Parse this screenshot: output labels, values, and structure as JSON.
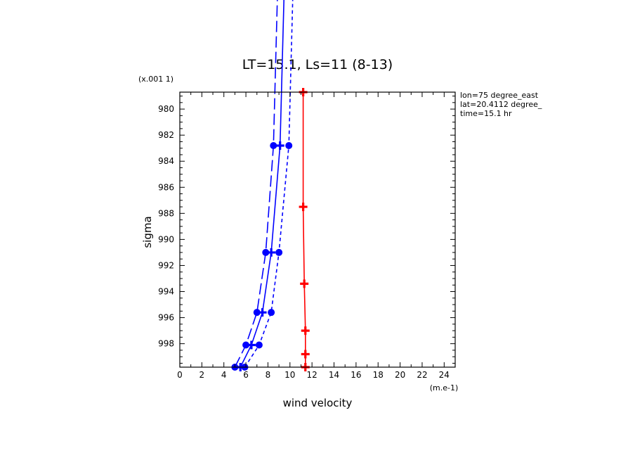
{
  "chart_data": {
    "type": "line",
    "title": "LT=15.1, Ls=11 (8-13)",
    "xlabel": "wind velocity",
    "ylabel": "sigma",
    "x_unit": "(m.e-1)",
    "y_unit": "(x.001 1)",
    "xlim": [
      0,
      25
    ],
    "ylim": [
      999.8,
      978.7
    ],
    "x_ticks": [
      0,
      2,
      4,
      6,
      8,
      10,
      12,
      14,
      16,
      18,
      20,
      22,
      24
    ],
    "y_ticks": [
      980,
      982,
      984,
      986,
      988,
      990,
      992,
      994,
      996,
      998
    ],
    "annotations": [
      "lon=75 degree_east",
      "lat=20.4112 degree_",
      "time=15.1 hr"
    ],
    "series": [
      {
        "color": "#0000ff",
        "dash": "long-dash",
        "marker": "circle",
        "points": [
          [
            5.0,
            999.8
          ],
          [
            6.0,
            998.1
          ],
          [
            7.0,
            995.6
          ],
          [
            7.8,
            991.0
          ],
          [
            8.5,
            982.8
          ],
          [
            8.9,
            970.0
          ]
        ]
      },
      {
        "color": "#0000ff",
        "dash": "solid",
        "marker": "plus",
        "points": [
          [
            5.5,
            999.8
          ],
          [
            6.5,
            998.1
          ],
          [
            7.5,
            995.6
          ],
          [
            8.3,
            991.0
          ],
          [
            9.1,
            982.8
          ],
          [
            9.5,
            970.0
          ]
        ]
      },
      {
        "color": "#0000ff",
        "dash": "short-dash",
        "marker": "circle",
        "points": [
          [
            5.9,
            999.8
          ],
          [
            7.2,
            998.1
          ],
          [
            8.3,
            995.6
          ],
          [
            9.0,
            991.0
          ],
          [
            9.9,
            982.8
          ],
          [
            10.3,
            970.0
          ]
        ]
      },
      {
        "color": "#ff0000",
        "dash": "solid",
        "marker": "plus",
        "points": [
          [
            11.2,
            978.7
          ],
          [
            11.2,
            987.5
          ],
          [
            11.3,
            993.4
          ],
          [
            11.4,
            997.0
          ],
          [
            11.4,
            998.8
          ],
          [
            11.4,
            999.8
          ]
        ]
      }
    ]
  }
}
